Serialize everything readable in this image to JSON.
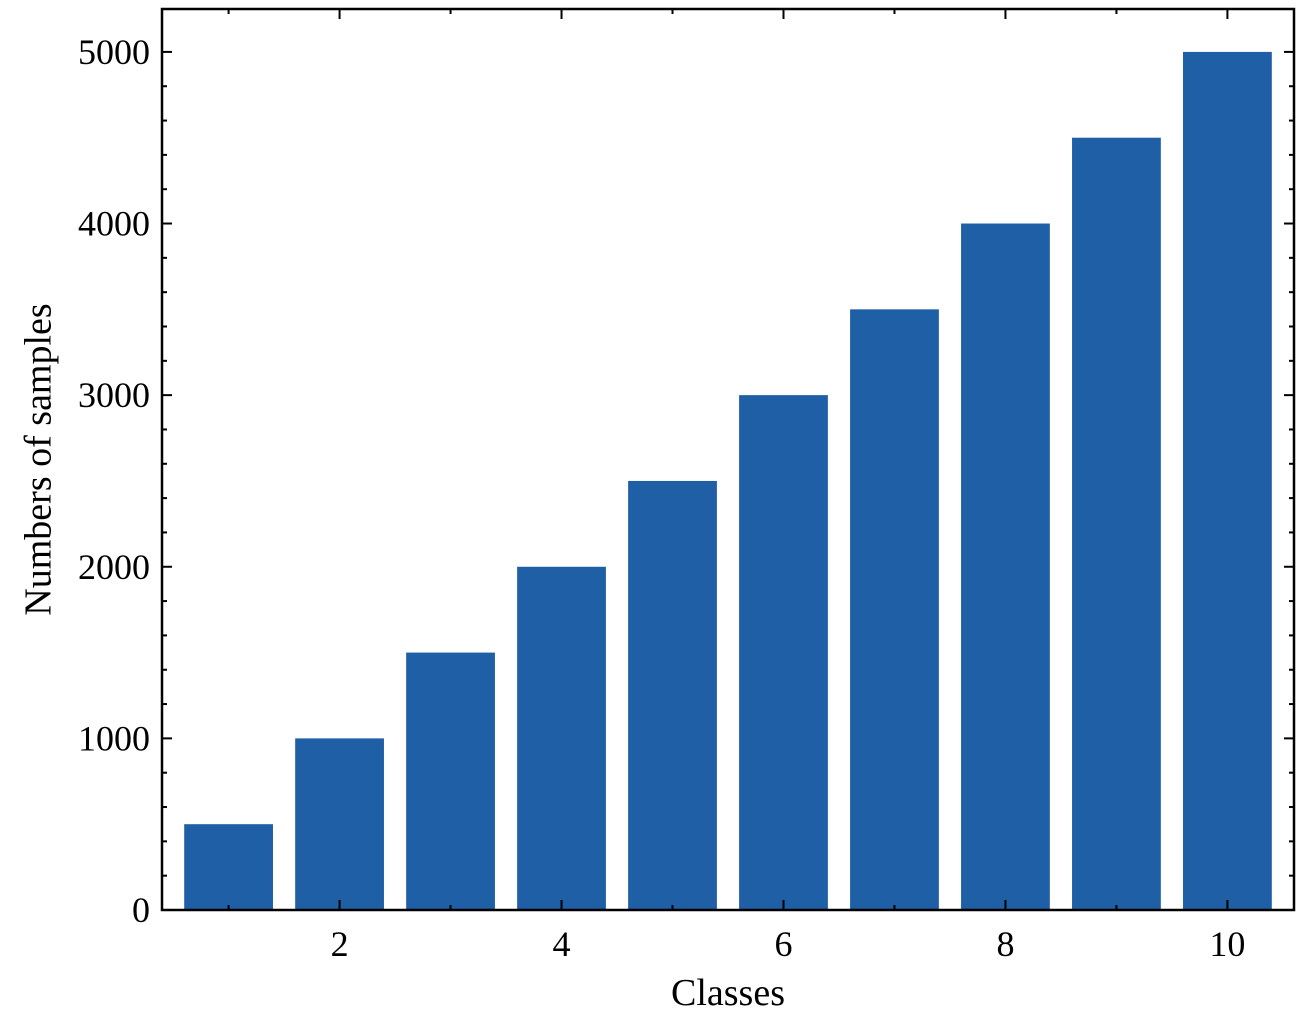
{
  "chart_data": {
    "type": "bar",
    "title": "",
    "xlabel": "Classes",
    "ylabel": "Numbers of samples",
    "x": [
      1,
      2,
      3,
      4,
      5,
      6,
      7,
      8,
      9,
      10
    ],
    "values": [
      500,
      1000,
      1500,
      2000,
      2500,
      3000,
      3500,
      4000,
      4500,
      5000
    ],
    "xlim": [
      0.4,
      10.6
    ],
    "ylim": [
      0,
      5250
    ],
    "xticks": [
      2,
      4,
      6,
      8,
      10
    ],
    "xtick_labels": [
      "2",
      "4",
      "6",
      "8",
      "10"
    ],
    "yticks": [
      0,
      1000,
      2000,
      3000,
      4000,
      5000
    ],
    "ytick_labels": [
      "0",
      "1000",
      "2000",
      "3000",
      "4000",
      "5000"
    ],
    "bar_width": 0.8,
    "bar_color": "#1f5fa6",
    "grid": false,
    "legend": false
  }
}
